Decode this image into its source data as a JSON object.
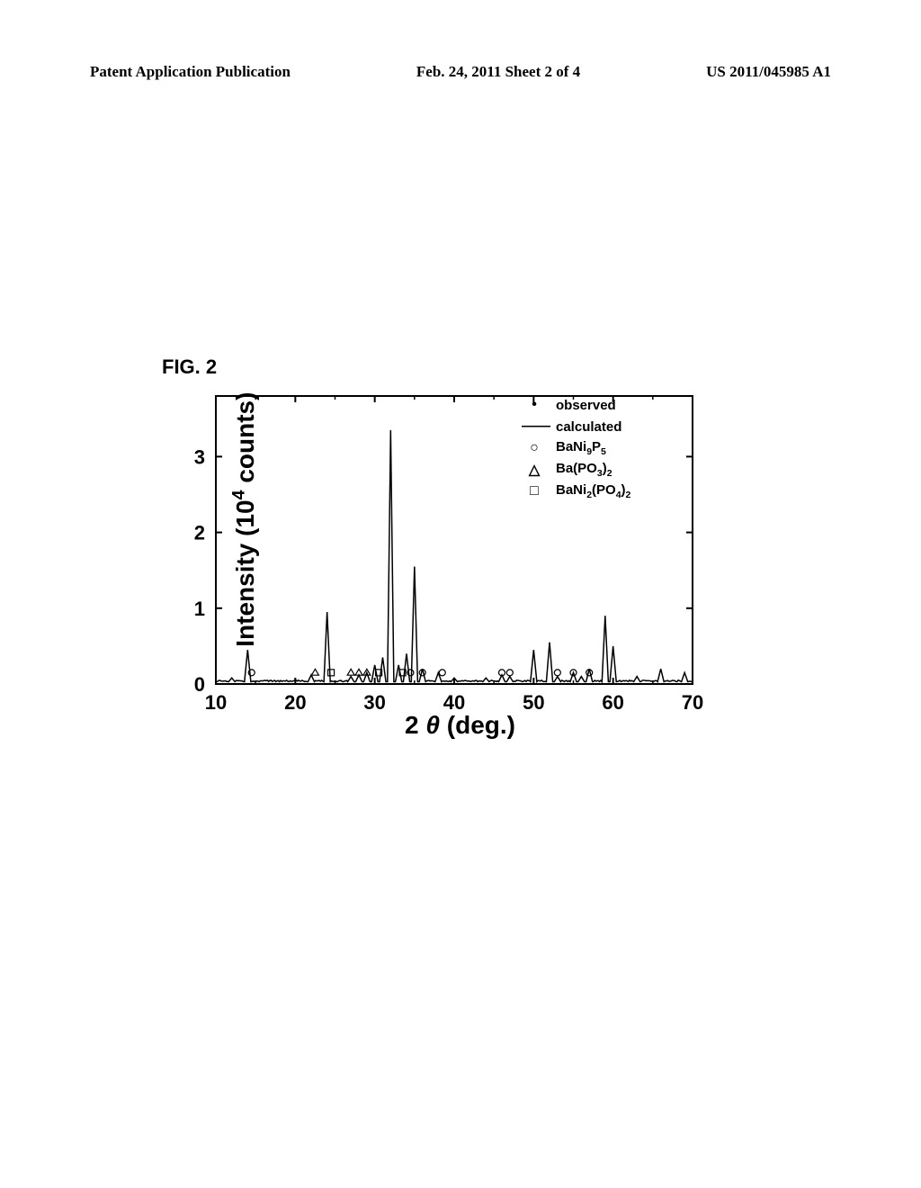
{
  "header": {
    "left": "Patent Application Publication",
    "center": "Feb. 24, 2011  Sheet 2 of 4",
    "right": "US 2011/045985 A1"
  },
  "figure": {
    "label": "FIG. 2",
    "ylabel": "Intensity (10⁴ counts)",
    "xlabel": "2 θ (deg.)",
    "xlim": [
      10,
      70
    ],
    "ylim": [
      0,
      3.8
    ],
    "xticks": [
      10,
      20,
      30,
      40,
      50,
      60,
      70
    ],
    "yticks": [
      0,
      1,
      2,
      3
    ],
    "plot_color": "#000000",
    "background_color": "#ffffff",
    "axis_color": "#000000",
    "line_width": 1.5,
    "title_fontsize": 22,
    "label_fontsize": 28,
    "tick_fontsize": 22,
    "legend": {
      "position": "top-right",
      "fontsize": 15,
      "items": [
        {
          "marker": "dot",
          "symbol": "•",
          "label": "observed"
        },
        {
          "marker": "line",
          "symbol": "—",
          "label": "calculated"
        },
        {
          "marker": "circle",
          "symbol": "○",
          "label": "BaNi₉P₅"
        },
        {
          "marker": "triangle",
          "symbol": "△",
          "label": "Ba(PO₃)₂"
        },
        {
          "marker": "square",
          "symbol": "□",
          "label": "BaNi₂(PO₄)₂"
        }
      ]
    },
    "peaks": [
      {
        "x": 12,
        "height": 0.08
      },
      {
        "x": 14,
        "height": 0.45
      },
      {
        "x": 22,
        "height": 0.12
      },
      {
        "x": 24,
        "height": 0.95
      },
      {
        "x": 27,
        "height": 0.1
      },
      {
        "x": 28,
        "height": 0.12
      },
      {
        "x": 29,
        "height": 0.15
      },
      {
        "x": 30,
        "height": 0.25
      },
      {
        "x": 31,
        "height": 0.35
      },
      {
        "x": 32,
        "height": 3.35
      },
      {
        "x": 33,
        "height": 0.25
      },
      {
        "x": 34,
        "height": 0.4
      },
      {
        "x": 35,
        "height": 1.55
      },
      {
        "x": 36,
        "height": 0.2
      },
      {
        "x": 38,
        "height": 0.15
      },
      {
        "x": 40,
        "height": 0.08
      },
      {
        "x": 44,
        "height": 0.08
      },
      {
        "x": 46,
        "height": 0.12
      },
      {
        "x": 47,
        "height": 0.1
      },
      {
        "x": 50,
        "height": 0.45
      },
      {
        "x": 52,
        "height": 0.55
      },
      {
        "x": 53,
        "height": 0.1
      },
      {
        "x": 55,
        "height": 0.15
      },
      {
        "x": 56,
        "height": 0.1
      },
      {
        "x": 57,
        "height": 0.2
      },
      {
        "x": 59,
        "height": 0.9
      },
      {
        "x": 60,
        "height": 0.5
      },
      {
        "x": 63,
        "height": 0.1
      },
      {
        "x": 66,
        "height": 0.2
      },
      {
        "x": 69,
        "height": 0.15
      }
    ],
    "impurity_markers": [
      {
        "x": 14.5,
        "type": "circle"
      },
      {
        "x": 22.5,
        "type": "triangle"
      },
      {
        "x": 24.5,
        "type": "square"
      },
      {
        "x": 27,
        "type": "triangle"
      },
      {
        "x": 28,
        "type": "triangle"
      },
      {
        "x": 29,
        "type": "triangle"
      },
      {
        "x": 30.5,
        "type": "square"
      },
      {
        "x": 33.5,
        "type": "square"
      },
      {
        "x": 34.5,
        "type": "circle"
      },
      {
        "x": 36,
        "type": "circle"
      },
      {
        "x": 38.5,
        "type": "circle"
      },
      {
        "x": 46,
        "type": "circle"
      },
      {
        "x": 47,
        "type": "circle"
      },
      {
        "x": 53,
        "type": "circle"
      },
      {
        "x": 55,
        "type": "circle"
      },
      {
        "x": 57,
        "type": "circle"
      }
    ]
  }
}
